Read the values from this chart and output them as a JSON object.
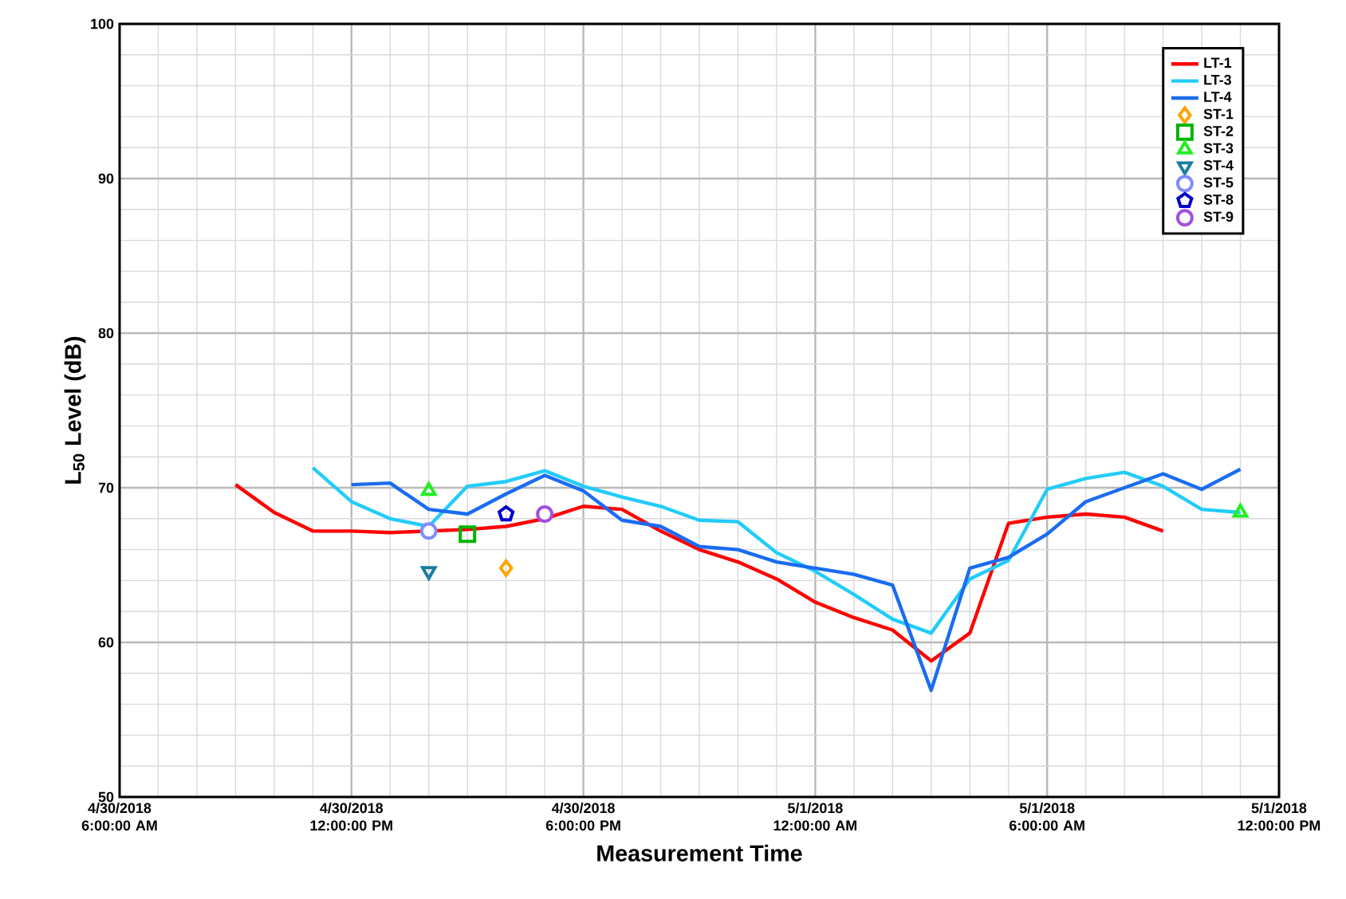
{
  "chart_data": {
    "type": "line",
    "xlabel": "Measurement Time",
    "ylabel": "L$_{50}$ Level (dB)",
    "xlim": [
      "2018-04-30T06:00",
      "2018-05-01T12:00"
    ],
    "xticks": [
      {
        "value": "2018-04-30T06:00",
        "label": "4/30/2018 6:00:00 AM"
      },
      {
        "value": "2018-04-30T12:00",
        "label": "4/30/2018 12:00:00 PM"
      },
      {
        "value": "2018-04-30T18:00",
        "label": "4/30/2018 6:00:00 PM"
      },
      {
        "value": "2018-05-01T00:00",
        "label": "5/1/2018 12:00:00 AM"
      },
      {
        "value": "2018-05-01T06:00",
        "label": "5/1/2018 6:00:00 AM"
      },
      {
        "value": "2018-05-01T12:00",
        "label": "5/1/2018 12:00:00 PM"
      }
    ],
    "ylim": [
      50,
      100
    ],
    "yticks": [
      50,
      60,
      70,
      80,
      90,
      100
    ],
    "grid": true,
    "legend": "top right",
    "series": [
      {
        "name": "LT-1",
        "color": "#ff0000",
        "x": [
          "2018-04-30T09:00",
          "2018-04-30T10:00",
          "2018-04-30T11:00",
          "2018-04-30T12:00",
          "2018-04-30T13:00",
          "2018-04-30T14:00",
          "2018-04-30T15:00",
          "2018-04-30T16:00",
          "2018-04-30T17:00",
          "2018-04-30T18:00",
          "2018-04-30T19:00",
          "2018-04-30T20:00",
          "2018-04-30T21:00",
          "2018-04-30T22:00",
          "2018-04-30T23:00",
          "2018-05-01T00:00",
          "2018-05-01T01:00",
          "2018-05-01T02:00",
          "2018-05-01T03:00",
          "2018-05-01T04:00",
          "2018-05-01T05:00",
          "2018-05-01T06:00",
          "2018-05-01T07:00",
          "2018-05-01T08:00",
          "2018-05-01T09:00"
        ],
        "values": [
          70.2,
          68.4,
          67.2,
          67.2,
          67.1,
          null,
          67.3,
          67.5,
          68.0,
          68.8,
          68.6,
          67.2,
          66.0,
          65.2,
          64.1,
          62.6,
          61.6,
          60.8,
          58.8,
          60.6,
          67.7,
          68.1,
          68.3,
          68.1,
          67.2
        ]
      },
      {
        "name": "LT-3",
        "color": "#22ccf8",
        "x": [
          "2018-04-30T11:00",
          "2018-04-30T12:00",
          "2018-04-30T13:00",
          "2018-04-30T14:00",
          "2018-04-30T15:00",
          "2018-04-30T16:00",
          "2018-04-30T17:00",
          "2018-04-30T18:00",
          "2018-04-30T19:00",
          "2018-04-30T20:00",
          "2018-04-30T21:00",
          "2018-04-30T22:00",
          "2018-04-30T23:00",
          "2018-05-01T00:00",
          "2018-05-01T01:00",
          "2018-05-01T02:00",
          "2018-05-01T03:00",
          "2018-05-01T04:00",
          "2018-05-01T05:00",
          "2018-05-01T06:00",
          "2018-05-01T07:00",
          "2018-05-01T08:00",
          "2018-05-01T09:00",
          "2018-05-01T10:00",
          "2018-05-01T11:00"
        ],
        "values": [
          71.3,
          69.1,
          68.0,
          67.5,
          70.1,
          70.4,
          71.1,
          70.1,
          69.4,
          68.8,
          67.9,
          67.8,
          65.8,
          64.6,
          63.1,
          61.5,
          60.6,
          64.1,
          65.3,
          69.9,
          70.6,
          71.0,
          70.1,
          68.6,
          68.4
        ]
      },
      {
        "name": "LT-4",
        "color": "#1a6cf0",
        "x": [
          "2018-04-30T12:00",
          "2018-04-30T13:00",
          "2018-04-30T14:00",
          "2018-04-30T15:00",
          "2018-04-30T16:00",
          "2018-04-30T17:00",
          "2018-04-30T18:00",
          "2018-04-30T19:00",
          "2018-04-30T20:00",
          "2018-04-30T21:00",
          "2018-04-30T22:00",
          "2018-04-30T23:00",
          "2018-05-01T00:00",
          "2018-05-01T01:00",
          "2018-05-01T02:00",
          "2018-05-01T03:00",
          "2018-05-01T04:00",
          "2018-05-01T05:00",
          "2018-05-01T06:00",
          "2018-05-01T07:00",
          "2018-05-01T08:00",
          "2018-05-01T09:00",
          "2018-05-01T10:00",
          "2018-05-01T11:00"
        ],
        "values": [
          70.2,
          70.3,
          68.6,
          68.3,
          69.6,
          70.8,
          69.8,
          67.9,
          67.5,
          66.2,
          66.0,
          65.2,
          64.8,
          64.4,
          63.7,
          56.9,
          64.8,
          65.5,
          67.0,
          69.1,
          70.0,
          70.9,
          69.9,
          71.2
        ]
      },
      {
        "name": "ST-1",
        "type": "scatter",
        "marker": "diamond",
        "color": "#ffa500",
        "x": [
          "2018-04-30T16:00"
        ],
        "values": [
          64.8
        ]
      },
      {
        "name": "ST-2",
        "type": "scatter",
        "marker": "square",
        "color": "#00b400",
        "x": [
          "2018-04-30T15:00"
        ],
        "values": [
          67.0
        ]
      },
      {
        "name": "ST-3",
        "type": "scatter",
        "marker": "triangle",
        "color": "#22ee22",
        "x": [
          "2018-04-30T14:00",
          "2018-05-01T11:00"
        ],
        "values": [
          69.8,
          68.4
        ]
      },
      {
        "name": "ST-4",
        "type": "scatter",
        "marker": "triangle-down",
        "color": "#1a7fa0",
        "x": [
          "2018-04-30T14:00"
        ],
        "values": [
          64.6
        ]
      },
      {
        "name": "ST-5",
        "type": "scatter",
        "marker": "circle",
        "color": "#7f8cff",
        "x": [
          "2018-04-30T14:00"
        ],
        "values": [
          67.2
        ]
      },
      {
        "name": "ST-8",
        "type": "scatter",
        "color": "#0000cc",
        "x": [
          "2018-04-30T16:00"
        ],
        "values": [
          68.3
        ]
      },
      {
        "name": "ST-9",
        "type": "scatter",
        "marker": "circle",
        "color": "#a050e0",
        "x": [
          "2018-04-30T17:00"
        ],
        "values": [
          68.3
        ]
      }
    ]
  }
}
